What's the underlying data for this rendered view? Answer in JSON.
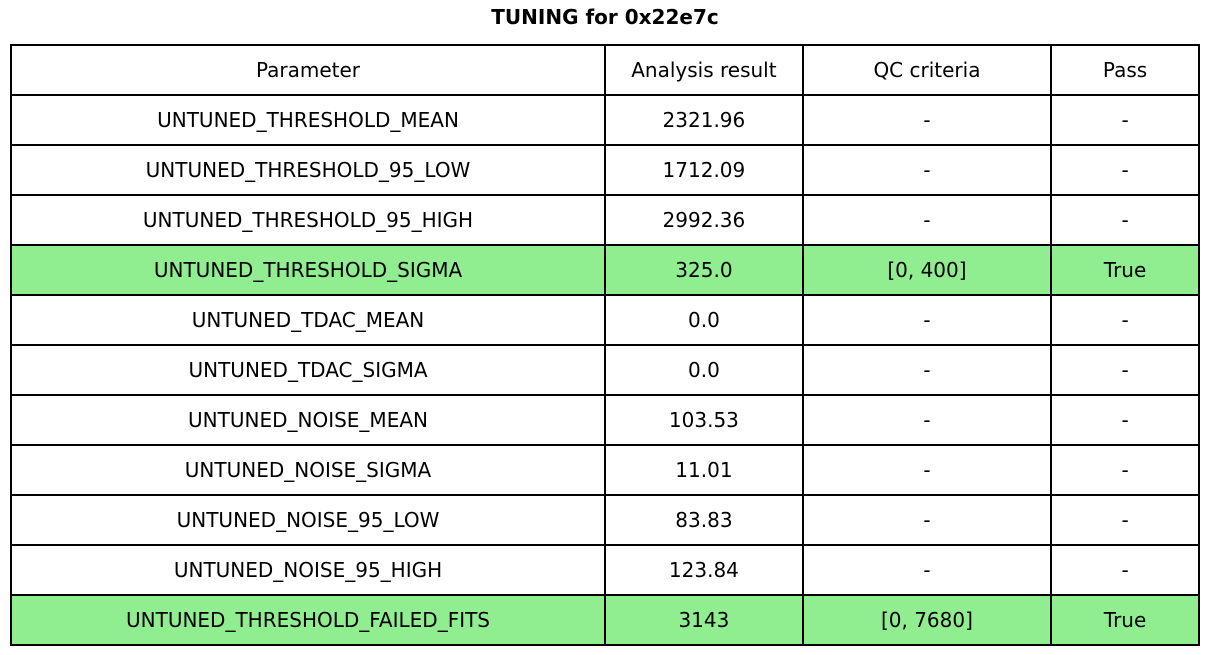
{
  "title": "TUNING for 0x22e7c",
  "chart_data": {
    "type": "table",
    "title": "TUNING for 0x22e7c",
    "columns": [
      "Parameter",
      "Analysis result",
      "QC criteria",
      "Pass"
    ],
    "rows": [
      {
        "parameter": "UNTUNED_THRESHOLD_MEAN",
        "result": "2321.96",
        "qc": "-",
        "pass": "-",
        "highlight": false
      },
      {
        "parameter": "UNTUNED_THRESHOLD_95_LOW",
        "result": "1712.09",
        "qc": "-",
        "pass": "-",
        "highlight": false
      },
      {
        "parameter": "UNTUNED_THRESHOLD_95_HIGH",
        "result": "2992.36",
        "qc": "-",
        "pass": "-",
        "highlight": false
      },
      {
        "parameter": "UNTUNED_THRESHOLD_SIGMA",
        "result": "325.0",
        "qc": "[0, 400]",
        "pass": "True",
        "highlight": true
      },
      {
        "parameter": "UNTUNED_TDAC_MEAN",
        "result": "0.0",
        "qc": "-",
        "pass": "-",
        "highlight": false
      },
      {
        "parameter": "UNTUNED_TDAC_SIGMA",
        "result": "0.0",
        "qc": "-",
        "pass": "-",
        "highlight": false
      },
      {
        "parameter": "UNTUNED_NOISE_MEAN",
        "result": "103.53",
        "qc": "-",
        "pass": "-",
        "highlight": false
      },
      {
        "parameter": "UNTUNED_NOISE_SIGMA",
        "result": "11.01",
        "qc": "-",
        "pass": "-",
        "highlight": false
      },
      {
        "parameter": "UNTUNED_NOISE_95_LOW",
        "result": "83.83",
        "qc": "-",
        "pass": "-",
        "highlight": false
      },
      {
        "parameter": "UNTUNED_NOISE_95_HIGH",
        "result": "123.84",
        "qc": "-",
        "pass": "-",
        "highlight": false
      },
      {
        "parameter": "UNTUNED_THRESHOLD_FAILED_FITS",
        "result": "3143",
        "qc": "[0, 7680]",
        "pass": "True",
        "highlight": true
      }
    ],
    "pass_highlight_color": "#90EE90",
    "border_color": "#000000",
    "background_color": "#ffffff"
  }
}
